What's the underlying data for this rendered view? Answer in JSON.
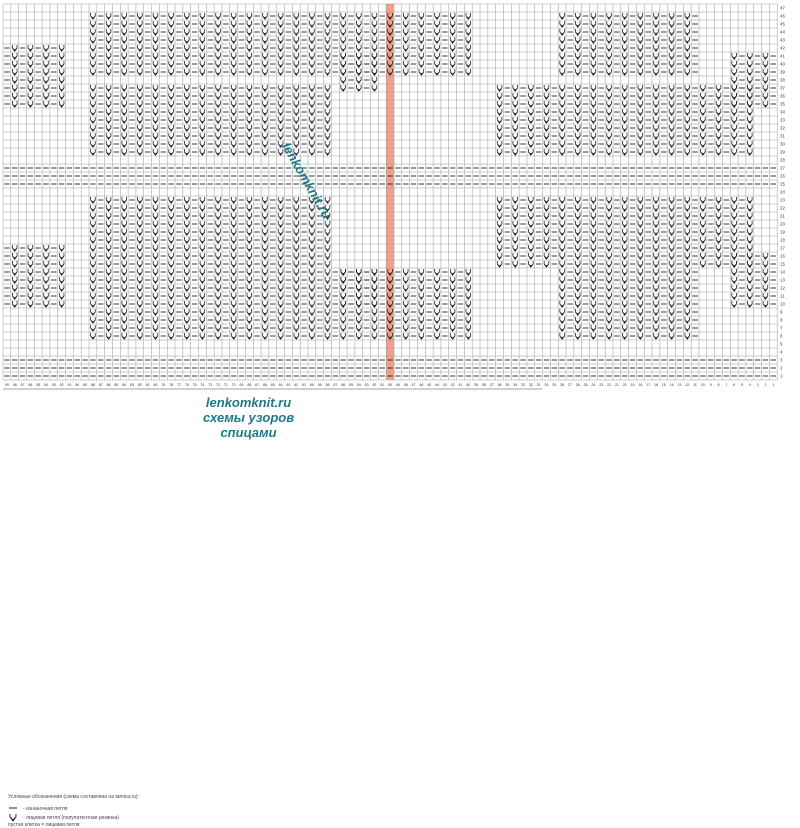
{
  "chart": {
    "row_count": 47,
    "column_count": 99,
    "highlight_column_color": "#f4a08a",
    "grid_line_color": "#9a9a9a",
    "stitch_color": "#222222"
  },
  "legend": {
    "title": "Условные обозначения (схема составлена на tamica.ru):",
    "items": [
      {
        "symbol": "dash-icon",
        "text": "- изнаночная петля"
      },
      {
        "symbol": "v-arrow-icon",
        "text": "- лицевая петля (полупатентная резинка)"
      },
      {
        "symbol": "empty-cell",
        "text": "пустая клетка = лицевая петля"
      }
    ]
  },
  "watermark": {
    "diagonal": "lenkomknit.ru",
    "bottom_line1": "lenkomknit.ru",
    "bottom_line2": "схемы узоров",
    "bottom_line3": "спицами"
  }
}
